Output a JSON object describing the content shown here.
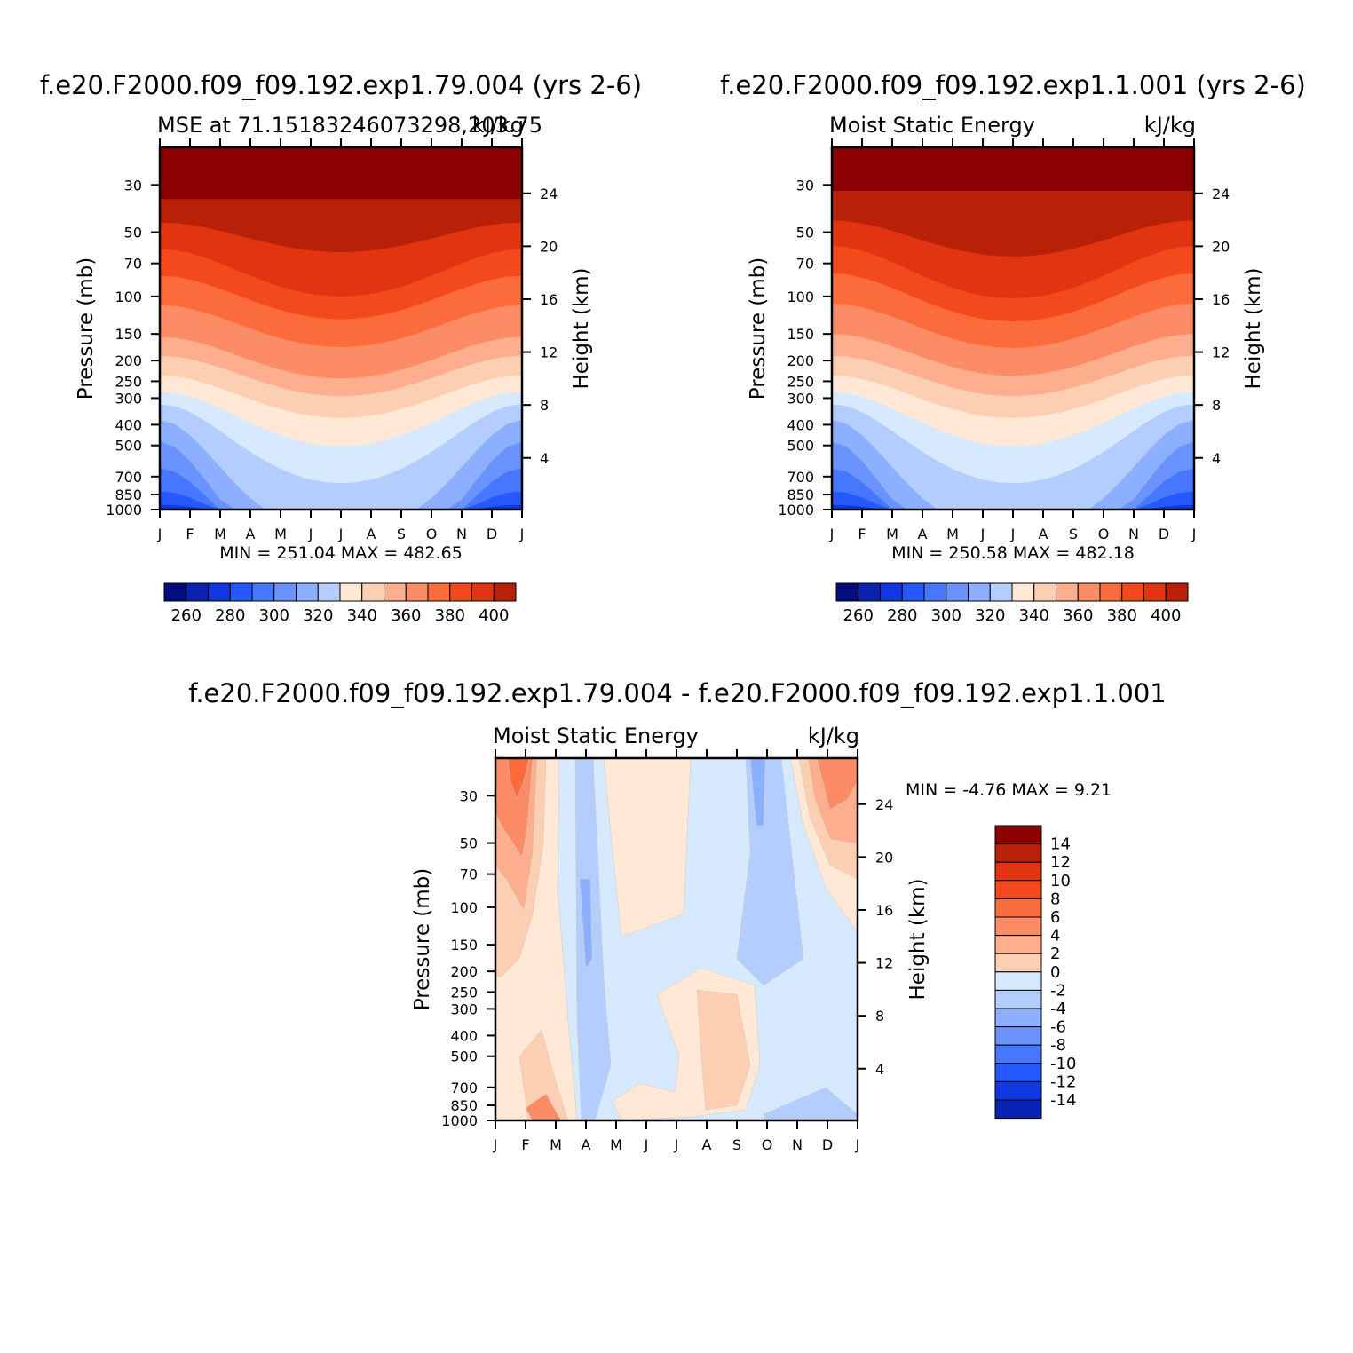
{
  "chart_data": [
    {
      "type": "heatmap",
      "main_title": "f.e20.F2000.f09_f09.192.exp1.79.004 (yrs 2-6)",
      "left_title": "MSE at 71.15183246073298,203.75",
      "right_title": "kJ/kg",
      "ylabel": "Pressure (mb)",
      "ylabel_right": "Height (km)",
      "x_ticks": [
        "J",
        "F",
        "M",
        "A",
        "M",
        "J",
        "J",
        "A",
        "S",
        "O",
        "N",
        "D",
        "J"
      ],
      "pressure_ticks": [
        "30",
        "50",
        "70",
        "100",
        "150",
        "200",
        "250",
        "300",
        "400",
        "500",
        "700",
        "850",
        "1000"
      ],
      "height_ticks": [
        "24",
        "20",
        "16",
        "12",
        "8",
        "4"
      ],
      "stats": "MIN = 251.04 MAX = 482.65",
      "colorbar_labels": [
        "260",
        "280",
        "300",
        "320",
        "340",
        "360",
        "380",
        "400"
      ],
      "contour_levels": [
        250,
        260,
        270,
        280,
        290,
        300,
        310,
        320,
        330,
        340,
        350,
        360,
        370,
        380,
        390,
        400
      ],
      "boundary_pressure_mb": [
        35,
        45,
        60,
        80,
        110,
        155,
        190,
        235,
        280,
        320,
        380,
        480,
        640,
        820,
        950
      ],
      "boundary_month_shift": [
        0,
        20,
        40,
        40,
        42,
        45,
        45,
        50,
        70,
        120,
        240,
        320,
        220,
        100,
        30
      ],
      "min": 251.04,
      "max": 482.65
    },
    {
      "type": "heatmap",
      "main_title": "f.e20.F2000.f09_f09.192.exp1.1.001 (yrs 2-6)",
      "left_title": "Moist Static Energy",
      "right_title": "kJ/kg",
      "ylabel": "Pressure (mb)",
      "ylabel_right": "Height (km)",
      "x_ticks": [
        "J",
        "F",
        "M",
        "A",
        "M",
        "J",
        "J",
        "A",
        "S",
        "O",
        "N",
        "D",
        "J"
      ],
      "pressure_ticks": [
        "30",
        "50",
        "70",
        "100",
        "150",
        "200",
        "250",
        "300",
        "400",
        "500",
        "700",
        "850",
        "1000"
      ],
      "height_ticks": [
        "24",
        "20",
        "16",
        "12",
        "8",
        "4"
      ],
      "stats": "MIN = 250.58 MAX = 482.18",
      "colorbar_labels": [
        "260",
        "280",
        "300",
        "320",
        "340",
        "360",
        "380",
        "400"
      ],
      "contour_levels": [
        250,
        260,
        270,
        280,
        290,
        300,
        310,
        320,
        330,
        340,
        350,
        360,
        370,
        380,
        390,
        400
      ],
      "boundary_pressure_mb": [
        32,
        44,
        58,
        78,
        108,
        150,
        190,
        235,
        280,
        320,
        380,
        480,
        640,
        820,
        950
      ],
      "boundary_month_shift": [
        0,
        25,
        45,
        45,
        45,
        45,
        45,
        50,
        70,
        120,
        240,
        320,
        220,
        100,
        30
      ],
      "min": 250.58,
      "max": 482.18
    },
    {
      "type": "heatmap",
      "main_title": "f.e20.F2000.f09_f09.192.exp1.79.004 - f.e20.F2000.f09_f09.192.exp1.1.001",
      "left_title": "Moist Static Energy",
      "right_title": "kJ/kg",
      "ylabel": "Pressure (mb)",
      "ylabel_right": "Height (km)",
      "x_ticks": [
        "J",
        "F",
        "M",
        "A",
        "M",
        "J",
        "J",
        "A",
        "S",
        "O",
        "N",
        "D",
        "J"
      ],
      "pressure_ticks": [
        "30",
        "50",
        "70",
        "100",
        "150",
        "200",
        "250",
        "300",
        "400",
        "500",
        "700",
        "850",
        "1000"
      ],
      "height_ticks": [
        "24",
        "20",
        "16",
        "12",
        "8",
        "4"
      ],
      "stats": "MIN = -4.76 MAX = 9.21",
      "colorbar_labels": [
        "14",
        "12",
        "10",
        "8",
        "6",
        "4",
        "2",
        "0",
        "-2",
        "-4",
        "-6",
        "-8",
        "-10",
        "-12",
        "-14"
      ],
      "contour_levels": [
        -14,
        -12,
        -10,
        -8,
        -6,
        -4,
        -2,
        0,
        2,
        4,
        6,
        8,
        10,
        12,
        14
      ],
      "min": -4.76,
      "max": 9.21
    }
  ],
  "colors": {
    "warm": [
      "#ffe8d6",
      "#fdcfb2",
      "#fcae8e",
      "#fb8c65",
      "#fb6b3c",
      "#f24a1c",
      "#e03510",
      "#b82008",
      "#8b0000"
    ],
    "cool": [
      "#d6e9ff",
      "#b3cdff",
      "#8cb0ff",
      "#6b93ff",
      "#4777ff",
      "#2658ff",
      "#1037e0",
      "#0a22b0",
      "#050c80"
    ]
  }
}
